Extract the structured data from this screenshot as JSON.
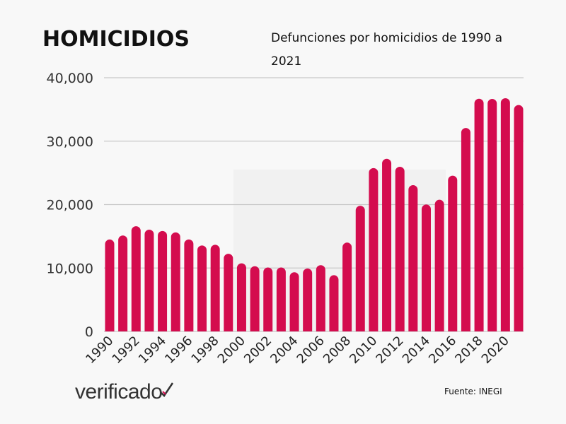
{
  "title": "HOMICIDIOS",
  "subtitle": "Defunciones por homicidios de 1990 a 2021",
  "logo": "verificado",
  "source": "Fuente: INEGI",
  "colors": {
    "bar": "#d40c4e",
    "grid": "#c8c8c8",
    "background": "#f8f8f8"
  },
  "chart_data": {
    "type": "bar",
    "title": "HOMICIDIOS",
    "subtitle": "Defunciones por homicidios de 1990 a 2021",
    "xlabel": "",
    "ylabel": "",
    "ylim": [
      0,
      40000
    ],
    "yticks": [
      0,
      10000,
      20000,
      30000,
      40000
    ],
    "ytick_labels": [
      "0",
      "10,000",
      "20,000",
      "30,000",
      "40,000"
    ],
    "grid": true,
    "categories": [
      "1990",
      "1991",
      "1992",
      "1993",
      "1994",
      "1995",
      "1996",
      "1997",
      "1998",
      "1999",
      "2000",
      "2001",
      "2002",
      "2003",
      "2004",
      "2005",
      "2006",
      "2007",
      "2008",
      "2009",
      "2010",
      "2011",
      "2012",
      "2013",
      "2014",
      "2015",
      "2016",
      "2017",
      "2018",
      "2019",
      "2020",
      "2021"
    ],
    "xtick_labels": [
      "1990",
      "1992",
      "1994",
      "1996",
      "1998",
      "2000",
      "2002",
      "2004",
      "2006",
      "2008",
      "2010",
      "2012",
      "2014",
      "2016",
      "2018",
      "2020"
    ],
    "series": [
      {
        "name": "Homicidios",
        "values": [
          14493,
          15125,
          16594,
          16050,
          15839,
          15612,
          14505,
          13552,
          13656,
          12249,
          10737,
          10285,
          10088,
          10087,
          9329,
          9921,
          10452,
          8867,
          14006,
          19803,
          25757,
          27213,
          25967,
          23063,
          20010,
          20762,
          24559,
          32079,
          36685,
          36661,
          36773,
          35700
        ]
      }
    ]
  }
}
